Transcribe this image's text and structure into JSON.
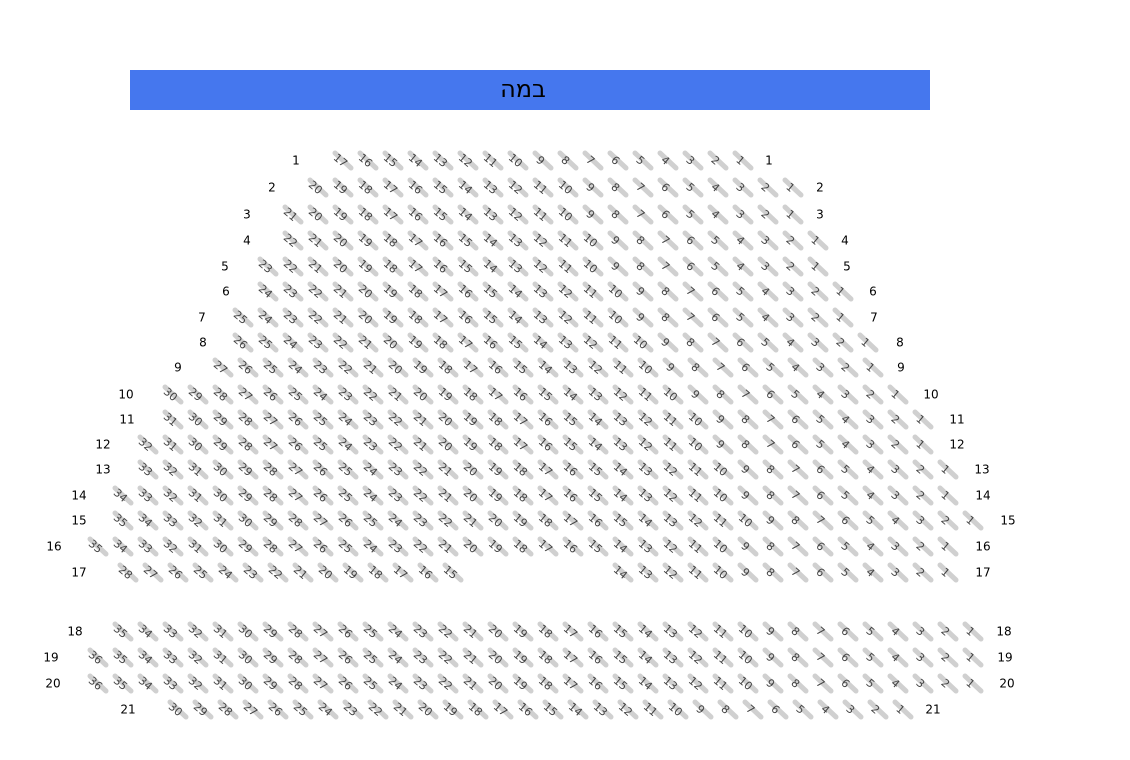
{
  "stage": {
    "label": "במה"
  },
  "rows": [
    {
      "label": "1",
      "blocks": [
        [
          17,
          16,
          15,
          14,
          13,
          12,
          11,
          10,
          9,
          8,
          7,
          6,
          5,
          4,
          3,
          2,
          1
        ]
      ]
    },
    {
      "label": "2",
      "blocks": [
        [
          20,
          19,
          18,
          17,
          16,
          15,
          14,
          13,
          12,
          11,
          10,
          9,
          8,
          7,
          6,
          5,
          4,
          3,
          2,
          1
        ]
      ]
    },
    {
      "label": "3",
      "blocks": [
        [
          21,
          20,
          19,
          18,
          17,
          16,
          15,
          14,
          13,
          12,
          11,
          10,
          9,
          8,
          7,
          6,
          5,
          4,
          3,
          2,
          1
        ]
      ]
    },
    {
      "label": "4",
      "blocks": [
        [
          22,
          21,
          20,
          19,
          18,
          17,
          16,
          15,
          14,
          13,
          12,
          11,
          10,
          9,
          8,
          7,
          6,
          5,
          4,
          3,
          2,
          1
        ]
      ]
    },
    {
      "label": "5",
      "blocks": [
        [
          23,
          22,
          21,
          20,
          19,
          18,
          17,
          16,
          15,
          14,
          13,
          12,
          11,
          10,
          9,
          8,
          7,
          6,
          5,
          4,
          3,
          2,
          1
        ]
      ]
    },
    {
      "label": "6",
      "blocks": [
        [
          24,
          23,
          22,
          21,
          20,
          19,
          18,
          17,
          16,
          15,
          14,
          13,
          12,
          11,
          10,
          9,
          8,
          7,
          6,
          5,
          4,
          3,
          2,
          1
        ]
      ]
    },
    {
      "label": "7",
      "blocks": [
        [
          25,
          24,
          23,
          22,
          21,
          20,
          19,
          18,
          17,
          16,
          15,
          14,
          13,
          12,
          11,
          10,
          9,
          8,
          7,
          6,
          5,
          4,
          3,
          2,
          1
        ]
      ]
    },
    {
      "label": "8",
      "blocks": [
        [
          26,
          25,
          24,
          23,
          22,
          21,
          20,
          19,
          18,
          17,
          16,
          15,
          14,
          13,
          12,
          11,
          10,
          9,
          8,
          7,
          6,
          5,
          4,
          3,
          2,
          1
        ]
      ]
    },
    {
      "label": "9",
      "blocks": [
        [
          27,
          26,
          25,
          24,
          23,
          22,
          21,
          20,
          19,
          18,
          17,
          16,
          15,
          14,
          13,
          12,
          11,
          10,
          9,
          8,
          7,
          6,
          5,
          4,
          3,
          2,
          1
        ]
      ]
    },
    {
      "label": "10",
      "blocks": [
        [
          30,
          29,
          28,
          27,
          26,
          25,
          24,
          23,
          22,
          21,
          20,
          19,
          18,
          17,
          16,
          15,
          14,
          13,
          12,
          11,
          10,
          9,
          8,
          7,
          6,
          5,
          4,
          3,
          2,
          1
        ]
      ]
    },
    {
      "label": "11",
      "blocks": [
        [
          31,
          30,
          29,
          28,
          27,
          26,
          25,
          24,
          23,
          22,
          21,
          20,
          19,
          18,
          17,
          16,
          15,
          14,
          13,
          12,
          11,
          10,
          9,
          8,
          7,
          6,
          5,
          4,
          3,
          2,
          1
        ]
      ]
    },
    {
      "label": "12",
      "blocks": [
        [
          32,
          31,
          30,
          29,
          28,
          27,
          26,
          25,
          24,
          23,
          22,
          21,
          20,
          19,
          18,
          17,
          16,
          15,
          14,
          13,
          12,
          11,
          10,
          9,
          8,
          7,
          6,
          5,
          4,
          3,
          2,
          1
        ]
      ]
    },
    {
      "label": "13",
      "blocks": [
        [
          33,
          32,
          31,
          30,
          29,
          28,
          27,
          26,
          25,
          24,
          23,
          22,
          21,
          20,
          19,
          18,
          17,
          16,
          15,
          14,
          13,
          12,
          11,
          10,
          9,
          8,
          7,
          6,
          5,
          4,
          3,
          2,
          1
        ]
      ]
    },
    {
      "label": "14",
      "blocks": [
        [
          34,
          33,
          32,
          31,
          30,
          29,
          28,
          27,
          26,
          25,
          24,
          23,
          22,
          21,
          20,
          19,
          18,
          17,
          16,
          15,
          14,
          13,
          12,
          11,
          10,
          9,
          8,
          7,
          6,
          5,
          4,
          3,
          2,
          1
        ]
      ]
    },
    {
      "label": "15",
      "blocks": [
        [
          35,
          34,
          33,
          32,
          31,
          30,
          29,
          28,
          27,
          26,
          25,
          24,
          23,
          22,
          21,
          20,
          19,
          18,
          17,
          16,
          15,
          14,
          13,
          12,
          11,
          10,
          9,
          8,
          7,
          6,
          5,
          4,
          3,
          2,
          1
        ]
      ]
    },
    {
      "label": "16",
      "blocks": [
        [
          35,
          34,
          33,
          32,
          31,
          30,
          29,
          28,
          27,
          26,
          25,
          24,
          23,
          22,
          21,
          20,
          19,
          18,
          17,
          16,
          15,
          14,
          13,
          12,
          11,
          10,
          9,
          8,
          7,
          6,
          5,
          4,
          3,
          2,
          1
        ]
      ]
    },
    {
      "label": "17",
      "blocks": [
        [
          28,
          27,
          26,
          25,
          24,
          23,
          22,
          21,
          20,
          19,
          18,
          17,
          16,
          15
        ],
        [
          14,
          13,
          12,
          11,
          10,
          9,
          8,
          7,
          6,
          5,
          4,
          3,
          2,
          1
        ]
      ]
    },
    {
      "label": "18",
      "blocks": [
        [
          35,
          34,
          33,
          32,
          31,
          30,
          29,
          28,
          27,
          26,
          25,
          24,
          23,
          22,
          21,
          20,
          19,
          18,
          17,
          16,
          15,
          14,
          13,
          12,
          11,
          10,
          9,
          8,
          7,
          6,
          5,
          4,
          3,
          2,
          1
        ]
      ]
    },
    {
      "label": "19",
      "blocks": [
        [
          36,
          35,
          34,
          33,
          32,
          31,
          30,
          29,
          28,
          27,
          26,
          25,
          24,
          23,
          22,
          21,
          20,
          19,
          18,
          17,
          16,
          15,
          14,
          13,
          12,
          11,
          10,
          9,
          8,
          7,
          6,
          5,
          4,
          3,
          2,
          1
        ]
      ]
    },
    {
      "label": "20",
      "blocks": [
        [
          36,
          35,
          34,
          33,
          32,
          31,
          30,
          29,
          28,
          27,
          26,
          25,
          24,
          23,
          22,
          21,
          20,
          19,
          18,
          17,
          16,
          15,
          14,
          13,
          12,
          11,
          10,
          9,
          8,
          7,
          6,
          5,
          4,
          3,
          2,
          1
        ]
      ]
    },
    {
      "label": "21",
      "blocks": [
        [
          30,
          29,
          28,
          27,
          26,
          25,
          24,
          23,
          22,
          21,
          20,
          19,
          18,
          17,
          16,
          15,
          14,
          13,
          12,
          11,
          10,
          9,
          8,
          7,
          6,
          5,
          4,
          3,
          2,
          1
        ]
      ]
    }
  ]
}
